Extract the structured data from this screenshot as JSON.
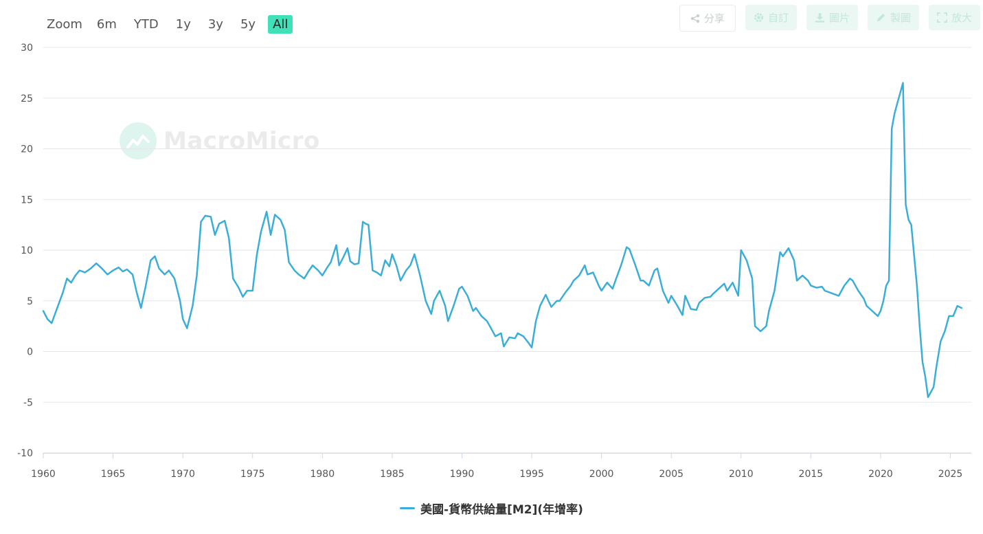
{
  "zoom": {
    "label": "Zoom",
    "buttons": [
      "6m",
      "YTD",
      "1y",
      "3y",
      "5y",
      "All"
    ],
    "active": "All",
    "active_color": "#40e0b8"
  },
  "toolbar": {
    "share": {
      "label": "分享",
      "icon": "share-icon"
    },
    "customize": {
      "label": "自訂",
      "icon": "gear-icon"
    },
    "image": {
      "label": "圖片",
      "icon": "download-icon"
    },
    "draw": {
      "label": "製圖",
      "icon": "pencil-icon"
    },
    "expand": {
      "label": "放大",
      "icon": "expand-icon"
    }
  },
  "watermark": {
    "text": "MacroMicro",
    "icon": "macromicro-logo-icon"
  },
  "legend": {
    "label": "美國-貨幣供給量[M2](年增率)",
    "color": "#3aaed8"
  },
  "chart_data": {
    "type": "line",
    "title": "",
    "xlabel": "",
    "ylabel": "",
    "ylim": [
      -10,
      30
    ],
    "yticks": [
      -10,
      -5,
      0,
      5,
      10,
      15,
      20,
      25,
      30
    ],
    "xlim": [
      1960,
      2026.5
    ],
    "xticks": [
      1960,
      1965,
      1970,
      1975,
      1980,
      1985,
      1990,
      1995,
      2000,
      2005,
      2010,
      2015,
      2020,
      2025
    ],
    "grid": "horizontal",
    "legend_position": "bottom-center",
    "series": [
      {
        "name": "美國-貨幣供給量[M2](年增率)",
        "color": "#3aaed8",
        "x": [
          1960.0,
          1960.3,
          1960.6,
          1961.0,
          1961.4,
          1961.7,
          1962.0,
          1962.3,
          1962.6,
          1963.0,
          1963.4,
          1963.8,
          1964.2,
          1964.6,
          1965.0,
          1965.4,
          1965.7,
          1966.0,
          1966.4,
          1966.7,
          1967.0,
          1967.3,
          1967.7,
          1968.0,
          1968.3,
          1968.7,
          1969.0,
          1969.4,
          1969.8,
          1970.0,
          1970.3,
          1970.7,
          1971.0,
          1971.3,
          1971.6,
          1972.0,
          1972.3,
          1972.6,
          1973.0,
          1973.3,
          1973.6,
          1974.0,
          1974.3,
          1974.6,
          1975.0,
          1975.3,
          1975.6,
          1976.0,
          1976.3,
          1976.6,
          1977.0,
          1977.3,
          1977.6,
          1978.0,
          1978.3,
          1978.7,
          1979.0,
          1979.3,
          1979.7,
          1980.0,
          1980.3,
          1980.6,
          1981.0,
          1981.2,
          1981.5,
          1981.8,
          1982.0,
          1982.3,
          1982.6,
          1982.9,
          1983.1,
          1983.3,
          1983.6,
          1983.9,
          1984.2,
          1984.5,
          1984.8,
          1985.0,
          1985.3,
          1985.6,
          1986.0,
          1986.3,
          1986.6,
          1987.0,
          1987.4,
          1987.8,
          1988.0,
          1988.4,
          1988.8,
          1989.0,
          1989.4,
          1989.8,
          1990.0,
          1990.4,
          1990.8,
          1991.0,
          1991.4,
          1991.8,
          1992.0,
          1992.4,
          1992.8,
          1993.0,
          1993.4,
          1993.8,
          1994.0,
          1994.4,
          1994.8,
          1995.0,
          1995.3,
          1995.6,
          1996.0,
          1996.4,
          1996.8,
          1997.0,
          1997.4,
          1997.8,
          1998.0,
          1998.4,
          1998.8,
          1999.0,
          1999.4,
          1999.8,
          2000.0,
          2000.4,
          2000.8,
          2001.0,
          2001.4,
          2001.8,
          2002.0,
          2002.4,
          2002.8,
          2003.0,
          2003.4,
          2003.8,
          2004.0,
          2004.4,
          2004.8,
          2005.0,
          2005.4,
          2005.8,
          2006.0,
          2006.4,
          2006.8,
          2007.0,
          2007.4,
          2007.8,
          2008.0,
          2008.4,
          2008.8,
          2009.0,
          2009.4,
          2009.8,
          2010.0,
          2010.4,
          2010.8,
          2011.0,
          2011.4,
          2011.8,
          2012.0,
          2012.4,
          2012.8,
          2013.0,
          2013.4,
          2013.8,
          2014.0,
          2014.4,
          2014.8,
          2015.0,
          2015.4,
          2015.8,
          2016.0,
          2016.4,
          2016.8,
          2017.0,
          2017.4,
          2017.8,
          2018.0,
          2018.4,
          2018.8,
          2019.0,
          2019.4,
          2019.8,
          2020.0,
          2020.2,
          2020.4,
          2020.6,
          2020.8,
          2021.0,
          2021.2,
          2021.4,
          2021.6,
          2021.8,
          2022.0,
          2022.2,
          2022.4,
          2022.6,
          2022.8,
          2023.0,
          2023.2,
          2023.4,
          2023.6,
          2023.8,
          2024.0,
          2024.3,
          2024.6,
          2024.9,
          2025.2,
          2025.5,
          2025.8
        ],
        "y": [
          4.0,
          3.2,
          2.8,
          4.3,
          5.8,
          7.2,
          6.8,
          7.5,
          8.0,
          7.8,
          8.2,
          8.7,
          8.2,
          7.6,
          8.0,
          8.3,
          7.9,
          8.1,
          7.6,
          5.8,
          4.3,
          6.2,
          9.0,
          9.4,
          8.2,
          7.6,
          8.0,
          7.2,
          5.0,
          3.2,
          2.3,
          4.5,
          7.5,
          12.8,
          13.4,
          13.3,
          11.5,
          12.6,
          12.9,
          11.2,
          7.2,
          6.3,
          5.4,
          6.0,
          6.0,
          9.5,
          11.8,
          13.8,
          11.5,
          13.5,
          13.0,
          12.0,
          8.8,
          8.0,
          7.6,
          7.2,
          7.9,
          8.5,
          8.0,
          7.5,
          8.2,
          8.8,
          10.5,
          8.5,
          9.3,
          10.2,
          8.9,
          8.6,
          8.7,
          12.8,
          12.6,
          12.5,
          8.0,
          7.8,
          7.5,
          9.0,
          8.4,
          9.6,
          8.5,
          7.0,
          8.0,
          8.5,
          9.6,
          7.5,
          5.0,
          3.7,
          5.0,
          6.0,
          4.5,
          3.0,
          4.5,
          6.2,
          6.4,
          5.5,
          4.0,
          4.3,
          3.5,
          3.0,
          2.5,
          1.5,
          1.8,
          0.5,
          1.4,
          1.3,
          1.8,
          1.5,
          0.8,
          0.4,
          3.0,
          4.5,
          5.6,
          4.4,
          5.0,
          5.0,
          5.8,
          6.5,
          7.0,
          7.5,
          8.5,
          7.6,
          7.8,
          6.5,
          6.0,
          6.8,
          6.2,
          7.0,
          8.5,
          10.3,
          10.1,
          8.6,
          7.0,
          7.0,
          6.5,
          8.0,
          8.2,
          6.0,
          4.8,
          5.5,
          4.6,
          3.6,
          5.5,
          4.2,
          4.1,
          4.8,
          5.3,
          5.4,
          5.7,
          6.2,
          6.7,
          6.0,
          6.8,
          5.5,
          10.0,
          9.0,
          7.2,
          2.5,
          2.0,
          2.5,
          4.0,
          6.0,
          9.8,
          9.4,
          10.2,
          9.0,
          7.0,
          7.5,
          7.0,
          6.5,
          6.3,
          6.4,
          6.0,
          5.8,
          5.6,
          5.5,
          6.5,
          7.2,
          7.0,
          6.0,
          5.2,
          4.5,
          4.0,
          3.5,
          4.0,
          5.0,
          6.5,
          7.0,
          22.0,
          23.5,
          24.5,
          25.5,
          26.5,
          14.5,
          13.0,
          12.5,
          9.5,
          6.5,
          2.5,
          -1.0,
          -2.5,
          -4.5,
          -4.0,
          -3.5,
          -1.5,
          1.0,
          2.0,
          3.5,
          3.5,
          4.5,
          4.3
        ]
      }
    ]
  }
}
